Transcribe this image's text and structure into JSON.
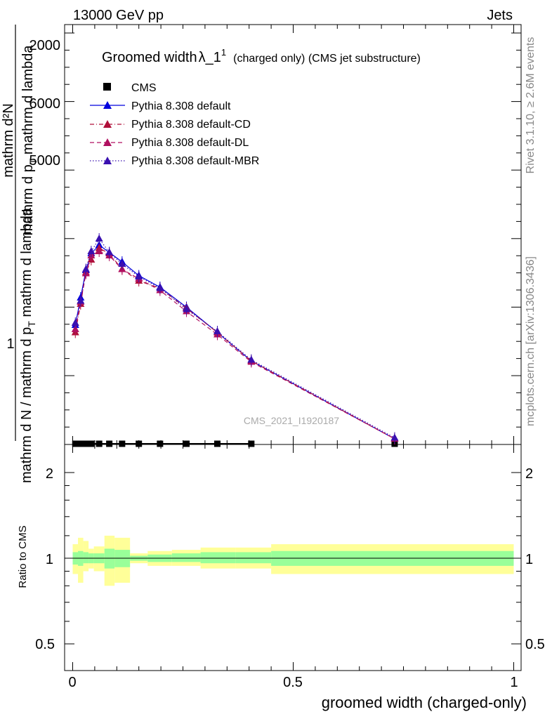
{
  "header": {
    "left": "13000 GeV pp",
    "right": "Jets"
  },
  "side_labels": {
    "rivet": "Rivet 3.1.10, ≥ 2.6M events",
    "mcplots": "mcplots.cern.ch [arXiv:1306.3436]"
  },
  "watermark": "CMS_2021_I1920187",
  "main_title": {
    "part1": "Groomed width",
    "part2": "λ_1",
    "sup": "1",
    "part3": "(charged only) (CMS jet substructure)"
  },
  "ylabel": {
    "numerator": "mathrm d²N",
    "denominator": "mathrm d p",
    "sub": "T",
    "denominator_rest": " mathrm d lambda",
    "lower": "mathrm d N / mathrm d p",
    "lower_sub": "T",
    "lower_rest": " mathrm d lambda",
    "lower_frac_num": "1"
  },
  "xlabel": "groomed width (charged-only)",
  "ratio_ylabel": "Ratio to CMS",
  "legend": [
    {
      "label": "CMS",
      "color": "#000000",
      "marker": "square",
      "style": "none"
    },
    {
      "label": "Pythia 8.308 default",
      "color": "#0000dd",
      "marker": "triangle",
      "style": "solid"
    },
    {
      "label": "Pythia 8.308 default-CD",
      "color": "#b0103a",
      "marker": "triangle",
      "style": "dashdot"
    },
    {
      "label": "Pythia 8.308 default-DL",
      "color": "#b01060",
      "marker": "triangle",
      "style": "dashed"
    },
    {
      "label": "Pythia 8.308 default-MBR",
      "color": "#3a10b0",
      "marker": "triangle",
      "style": "dotted"
    }
  ],
  "main_yticks": [
    {
      "label": "2000",
      "value": 2000
    },
    {
      "label": "6000",
      "value": 6000
    },
    {
      "label": "5000",
      "value": 5000
    },
    {
      "label": "1",
      "value": 1
    }
  ],
  "ratio_yticks": [
    {
      "label": "2",
      "value": 2
    },
    {
      "label": "1",
      "value": 1
    },
    {
      "label": "0.5",
      "value": 0.5
    }
  ],
  "xticks": [
    {
      "label": "0",
      "value": 0
    },
    {
      "label": "0.5",
      "value": 0.5
    },
    {
      "label": "1",
      "value": 1
    }
  ],
  "chart_data": {
    "type": "line",
    "xlim": [
      -0.02,
      1.0
    ],
    "series": [
      {
        "name": "CMS",
        "x": [
          0.006,
          0.018,
          0.03,
          0.042,
          0.06,
          0.083,
          0.112,
          0.15,
          0.198,
          0.258,
          0.328,
          0.405,
          0.73
        ],
        "y": [
          0.001,
          0.001,
          0.001,
          0.001,
          0.001,
          0.001,
          0.001,
          0.001,
          0.001,
          0.001,
          0.001,
          0.001,
          0.001
        ]
      },
      {
        "name": "Pythia 8.308 default",
        "x": [
          0.006,
          0.018,
          0.03,
          0.042,
          0.06,
          0.083,
          0.112,
          0.15,
          0.198,
          0.258,
          0.328,
          0.405,
          0.73
        ],
        "y": [
          1.1,
          1.36,
          1.62,
          1.78,
          1.86,
          1.79,
          1.7,
          1.57,
          1.46,
          1.27,
          1.03,
          0.76,
          0.02
        ]
      },
      {
        "name": "Pythia 8.308 default-CD",
        "x": [
          0.006,
          0.018,
          0.03,
          0.042,
          0.06,
          0.083,
          0.112,
          0.15,
          0.198,
          0.258,
          0.328,
          0.405,
          0.73
        ],
        "y": [
          1.03,
          1.3,
          1.6,
          1.72,
          1.83,
          1.78,
          1.63,
          1.52,
          1.45,
          1.26,
          1.03,
          0.76,
          0.02
        ]
      },
      {
        "name": "Pythia 8.308 default-DL",
        "x": [
          0.006,
          0.018,
          0.03,
          0.042,
          0.06,
          0.083,
          0.112,
          0.15,
          0.198,
          0.258,
          0.328,
          0.405,
          0.73
        ],
        "y": [
          1.06,
          1.32,
          1.59,
          1.76,
          1.8,
          1.76,
          1.63,
          1.54,
          1.43,
          1.23,
          1.01,
          0.75,
          0.02
        ]
      },
      {
        "name": "Pythia 8.308 default-MBR",
        "x": [
          0.006,
          0.018,
          0.03,
          0.042,
          0.06,
          0.083,
          0.112,
          0.15,
          0.198,
          0.258,
          0.328,
          0.405,
          0.73
        ],
        "y": [
          1.12,
          1.33,
          1.63,
          1.8,
          1.92,
          1.79,
          1.68,
          1.56,
          1.45,
          1.25,
          1.04,
          0.77,
          0.03
        ]
      }
    ],
    "ratio": {
      "ylabel": "Ratio to CMS",
      "bands": [
        {
          "x0": 0.0,
          "x1": 0.012,
          "inner": [
            0.95,
            1.05
          ],
          "outer": [
            0.88,
            1.12
          ]
        },
        {
          "x0": 0.012,
          "x1": 0.024,
          "inner": [
            0.94,
            1.06
          ],
          "outer": [
            0.82,
            1.18
          ]
        },
        {
          "x0": 0.024,
          "x1": 0.036,
          "inner": [
            0.96,
            1.05
          ],
          "outer": [
            0.9,
            1.15
          ]
        },
        {
          "x0": 0.036,
          "x1": 0.048,
          "inner": [
            0.96,
            1.04
          ],
          "outer": [
            0.92,
            1.08
          ]
        },
        {
          "x0": 0.048,
          "x1": 0.072,
          "inner": [
            0.96,
            1.04
          ],
          "outer": [
            0.9,
            1.1
          ]
        },
        {
          "x0": 0.072,
          "x1": 0.095,
          "inner": [
            0.92,
            1.08
          ],
          "outer": [
            0.8,
            1.2
          ]
        },
        {
          "x0": 0.095,
          "x1": 0.13,
          "inner": [
            0.93,
            1.07
          ],
          "outer": [
            0.82,
            1.18
          ]
        },
        {
          "x0": 0.13,
          "x1": 0.17,
          "inner": [
            0.98,
            1.02
          ],
          "outer": [
            0.96,
            1.04
          ]
        },
        {
          "x0": 0.17,
          "x1": 0.225,
          "inner": [
            0.97,
            1.03
          ],
          "outer": [
            0.94,
            1.06
          ]
        },
        {
          "x0": 0.225,
          "x1": 0.29,
          "inner": [
            0.97,
            1.04
          ],
          "outer": [
            0.94,
            1.07
          ]
        },
        {
          "x0": 0.29,
          "x1": 0.37,
          "inner": [
            0.96,
            1.05
          ],
          "outer": [
            0.92,
            1.09
          ]
        },
        {
          "x0": 0.37,
          "x1": 0.45,
          "inner": [
            0.96,
            1.05
          ],
          "outer": [
            0.92,
            1.09
          ]
        },
        {
          "x0": 0.45,
          "x1": 1.0,
          "inner": [
            0.94,
            1.06
          ],
          "outer": [
            0.88,
            1.12
          ]
        }
      ]
    }
  }
}
